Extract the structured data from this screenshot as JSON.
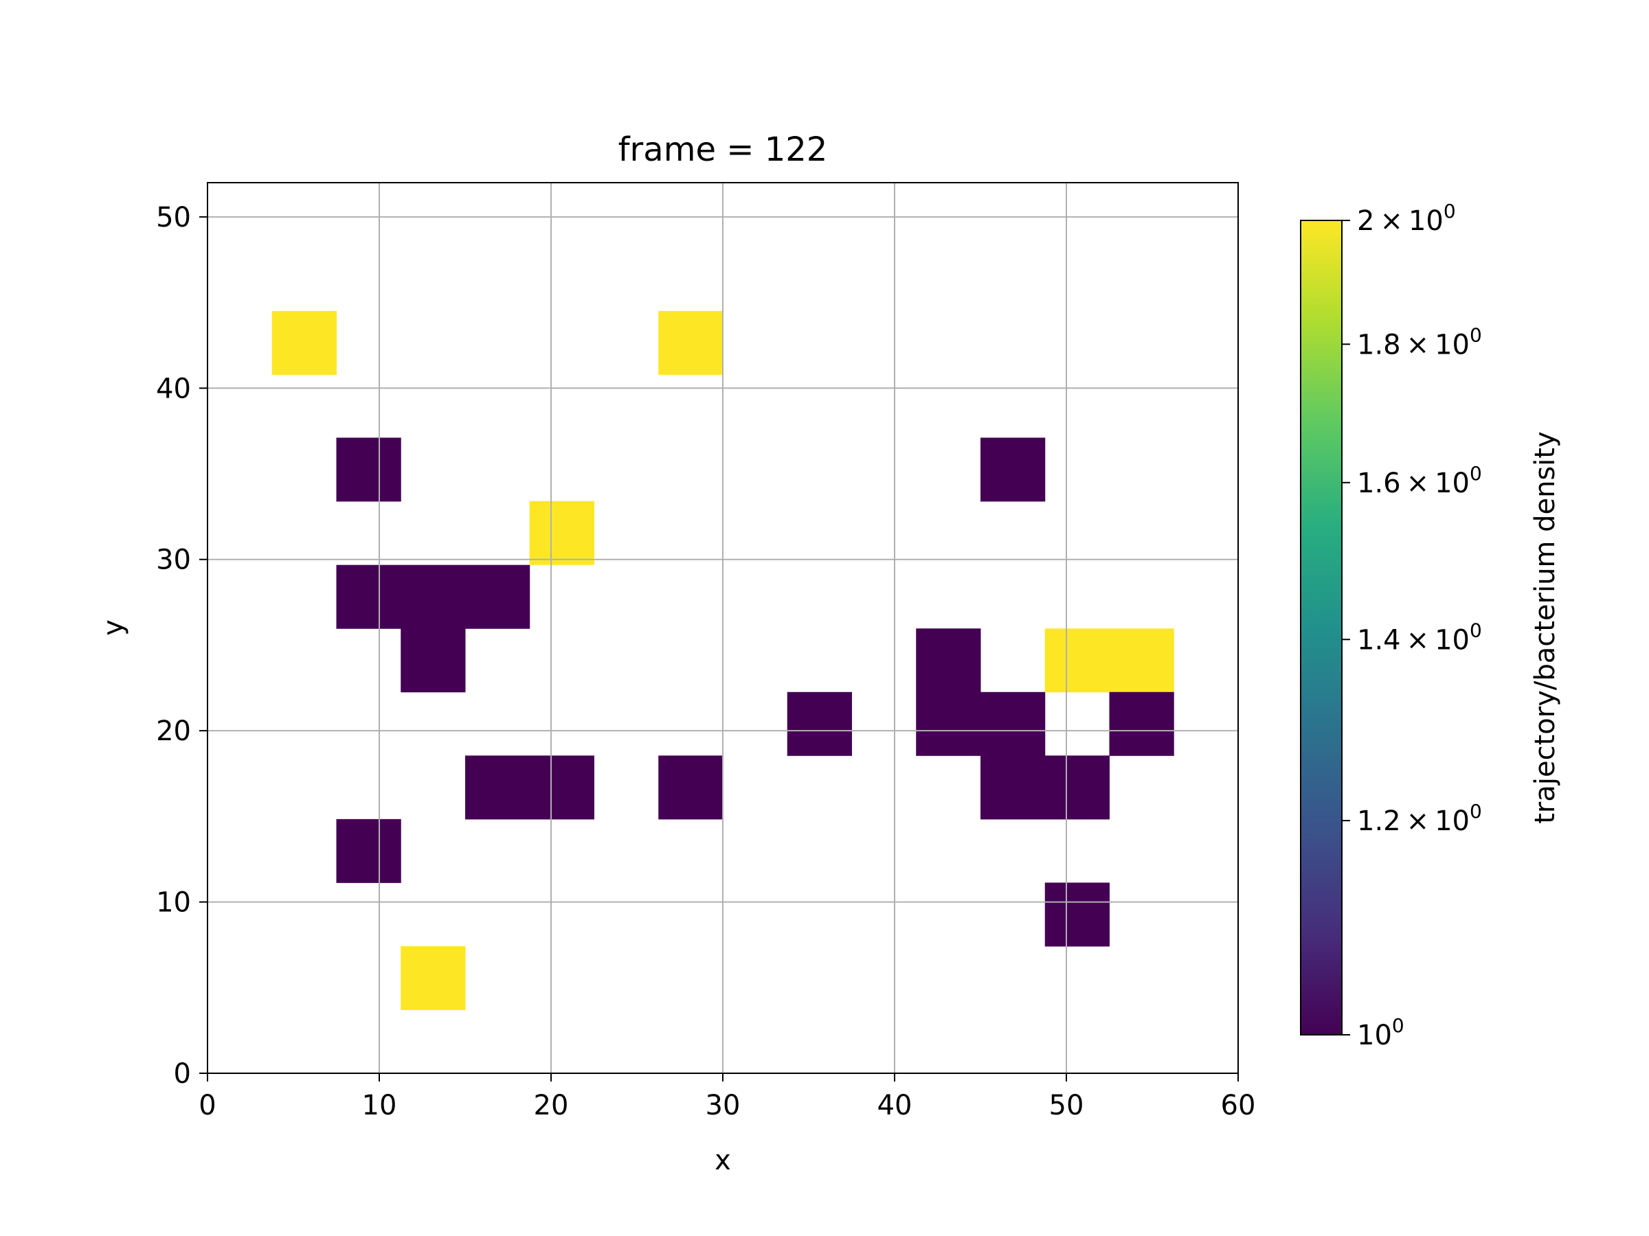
{
  "chart_data": {
    "type": "heatmap",
    "title": "frame = 122",
    "xlabel": "x",
    "ylabel": "y",
    "xlim": [
      0,
      60
    ],
    "ylim": [
      0,
      52
    ],
    "xticks": [
      0,
      10,
      20,
      30,
      40,
      50,
      60
    ],
    "yticks": [
      0,
      10,
      20,
      30,
      40,
      50
    ],
    "grid": true,
    "bin_width": 3.75,
    "bin_height": 3.71,
    "colorscale": "viridis",
    "color_scale_type": "log",
    "colorbar": {
      "label": "trajectory/bacterium density",
      "range": [
        1,
        2
      ],
      "ticks": [
        {
          "value": 1.0,
          "base": "10",
          "exp": "0",
          "mantissa": ""
        },
        {
          "value": 1.2,
          "base": "10",
          "exp": "0",
          "mantissa": "1.2"
        },
        {
          "value": 1.4,
          "base": "10",
          "exp": "0",
          "mantissa": "1.4"
        },
        {
          "value": 1.6,
          "base": "10",
          "exp": "0",
          "mantissa": "1.6"
        },
        {
          "value": 1.8,
          "base": "10",
          "exp": "0",
          "mantissa": "1.8"
        },
        {
          "value": 2.0,
          "base": "10",
          "exp": "0",
          "mantissa": "2"
        }
      ]
    },
    "cells": [
      {
        "x": 3.75,
        "y": 40.8,
        "value": 2
      },
      {
        "x": 26.25,
        "y": 40.8,
        "value": 2
      },
      {
        "x": 7.5,
        "y": 33.4,
        "value": 1
      },
      {
        "x": 45.0,
        "y": 33.4,
        "value": 1
      },
      {
        "x": 18.75,
        "y": 29.7,
        "value": 2
      },
      {
        "x": 7.5,
        "y": 25.97,
        "value": 1
      },
      {
        "x": 11.25,
        "y": 25.97,
        "value": 1
      },
      {
        "x": 15.0,
        "y": 25.97,
        "value": 1
      },
      {
        "x": 11.25,
        "y": 22.26,
        "value": 1
      },
      {
        "x": 41.25,
        "y": 22.26,
        "value": 1
      },
      {
        "x": 48.75,
        "y": 22.26,
        "value": 2
      },
      {
        "x": 52.5,
        "y": 22.26,
        "value": 2
      },
      {
        "x": 33.75,
        "y": 18.55,
        "value": 1
      },
      {
        "x": 41.25,
        "y": 18.55,
        "value": 1
      },
      {
        "x": 45.0,
        "y": 18.55,
        "value": 1
      },
      {
        "x": 52.5,
        "y": 18.55,
        "value": 1
      },
      {
        "x": 15.0,
        "y": 14.84,
        "value": 1
      },
      {
        "x": 18.75,
        "y": 14.84,
        "value": 1
      },
      {
        "x": 26.25,
        "y": 14.84,
        "value": 1
      },
      {
        "x": 45.0,
        "y": 14.84,
        "value": 1
      },
      {
        "x": 48.75,
        "y": 14.84,
        "value": 1
      },
      {
        "x": 7.5,
        "y": 11.13,
        "value": 1
      },
      {
        "x": 48.75,
        "y": 7.42,
        "value": 1
      },
      {
        "x": 11.25,
        "y": 3.71,
        "value": 2
      }
    ]
  }
}
